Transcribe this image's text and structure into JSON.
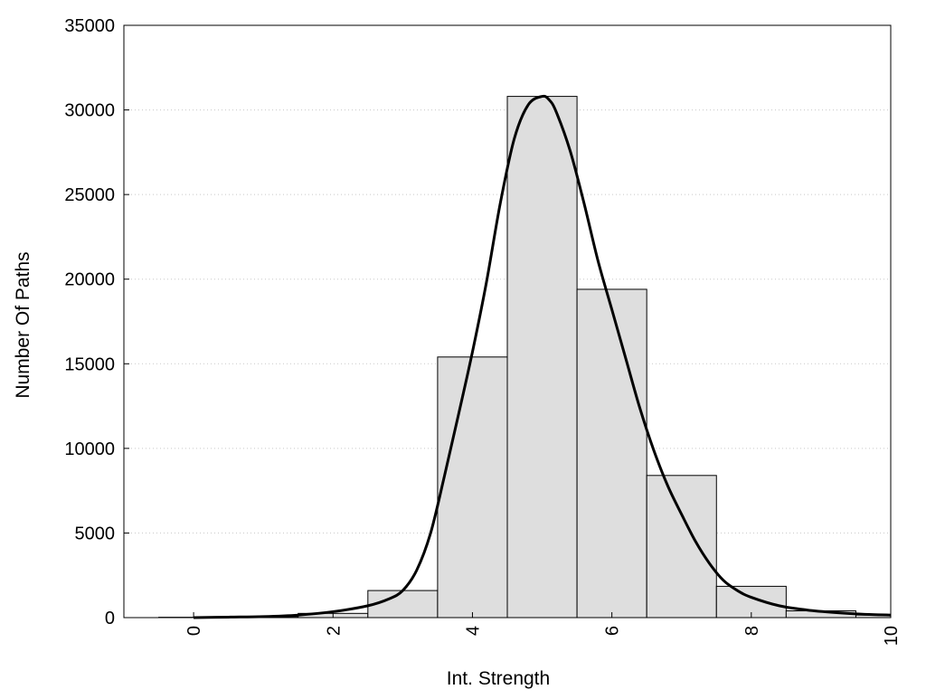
{
  "chart_data": {
    "type": "bar",
    "title": "",
    "xlabel": "Int. Strength",
    "ylabel": "Number Of Paths",
    "xlim": [
      -1,
      10
    ],
    "ylim": [
      0,
      35000
    ],
    "grid": {
      "y": true,
      "x": false,
      "style": "dotted"
    },
    "x_ticks": [
      0,
      2,
      4,
      6,
      8,
      10
    ],
    "x_tick_labels": [
      "0",
      "2",
      "4",
      "6",
      "8",
      "10"
    ],
    "y_ticks": [
      0,
      5000,
      10000,
      15000,
      20000,
      25000,
      30000,
      35000
    ],
    "y_tick_labels": [
      "0",
      "5000",
      "10000",
      "15000",
      "20000",
      "25000",
      "30000",
      "35000"
    ],
    "bar_width": 1,
    "x": [
      0,
      1,
      2,
      3,
      4,
      5,
      6,
      7,
      8,
      9,
      10
    ],
    "values": [
      20,
      60,
      250,
      1600,
      15400,
      30800,
      19400,
      8400,
      1850,
      400,
      150
    ],
    "curve": {
      "x": [
        0,
        0.5,
        1,
        1.5,
        2,
        2.5,
        2.8,
        3,
        3.2,
        3.4,
        3.6,
        3.8,
        4,
        4.2,
        4.4,
        4.6,
        4.8,
        5,
        5.1,
        5.2,
        5.4,
        5.6,
        5.8,
        6,
        6.2,
        6.4,
        6.6,
        6.8,
        7,
        7.2,
        7.4,
        7.6,
        7.8,
        8,
        8.4,
        8.8,
        9.2,
        9.6,
        10
      ],
      "y": [
        0,
        30,
        60,
        150,
        350,
        700,
        1100,
        1600,
        2800,
        5000,
        8400,
        12000,
        15700,
        19800,
        24500,
        28300,
        30300,
        30800,
        30600,
        29900,
        27600,
        24500,
        21100,
        18200,
        15300,
        12400,
        9900,
        7800,
        6100,
        4500,
        3200,
        2200,
        1600,
        1200,
        700,
        450,
        300,
        200,
        150
      ]
    },
    "colors": {
      "bar_fill": "#dedede",
      "bar_stroke": "#000000",
      "curve": "#000000",
      "grid": "#c8c8c8"
    }
  }
}
